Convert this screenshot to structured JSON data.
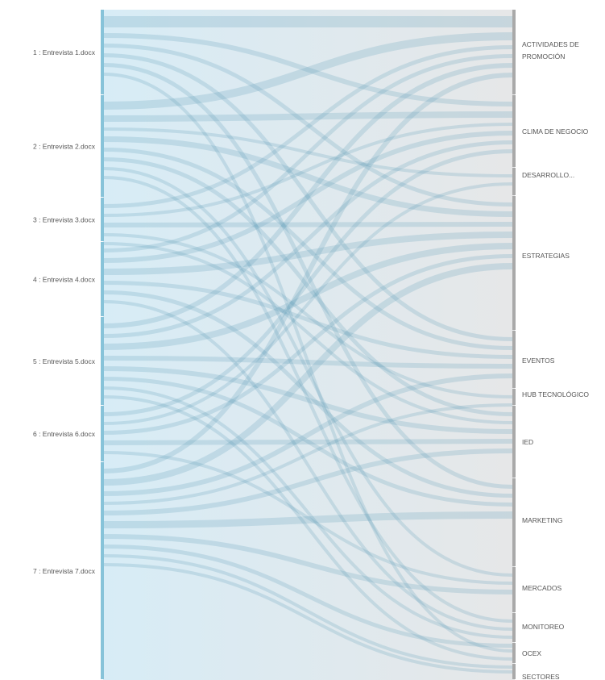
{
  "colors": {
    "source_bar": "#87c3d9",
    "target_bar": "#a9a9a9",
    "flow": "#5a9ab4",
    "band_left": "#d7ecf6",
    "band_right": "#e6e7e8"
  },
  "sources": [
    {
      "id": "s1",
      "label": "1 : Entrevista 1.docx"
    },
    {
      "id": "s2",
      "label": "2 : Entrevista 2.docx"
    },
    {
      "id": "s3",
      "label": "3 : Entrevista 3.docx"
    },
    {
      "id": "s4",
      "label": "4 : Entrevista 4.docx"
    },
    {
      "id": "s5",
      "label": "5 : Entrevista 5.docx"
    },
    {
      "id": "s6",
      "label": "6 : Entrevista 6.docx"
    },
    {
      "id": "s7",
      "label": "7 : Entrevista 7.docx"
    }
  ],
  "targets": [
    {
      "id": "t1",
      "lines": [
        "ACTIVIDADES DE",
        "PROMOCIÓN"
      ]
    },
    {
      "id": "t2",
      "lines": [
        "CLIMA DE NEGOCIO"
      ]
    },
    {
      "id": "t3",
      "lines": [
        "DESARROLLO..."
      ]
    },
    {
      "id": "t4",
      "lines": [
        "ESTRATEGIAS"
      ]
    },
    {
      "id": "t5",
      "lines": [
        "EVENTOS"
      ]
    },
    {
      "id": "t6",
      "lines": [
        "HUB TECNOLÓGICO"
      ]
    },
    {
      "id": "t7",
      "lines": [
        "IED"
      ]
    },
    {
      "id": "t8",
      "lines": [
        "MARKETING"
      ]
    },
    {
      "id": "t9",
      "lines": [
        "MERCADOS"
      ]
    },
    {
      "id": "t10",
      "lines": [
        "MONITOREO"
      ]
    },
    {
      "id": "t11",
      "lines": [
        "OCEX"
      ]
    },
    {
      "id": "t12",
      "lines": [
        "SECTORES"
      ]
    }
  ]
}
